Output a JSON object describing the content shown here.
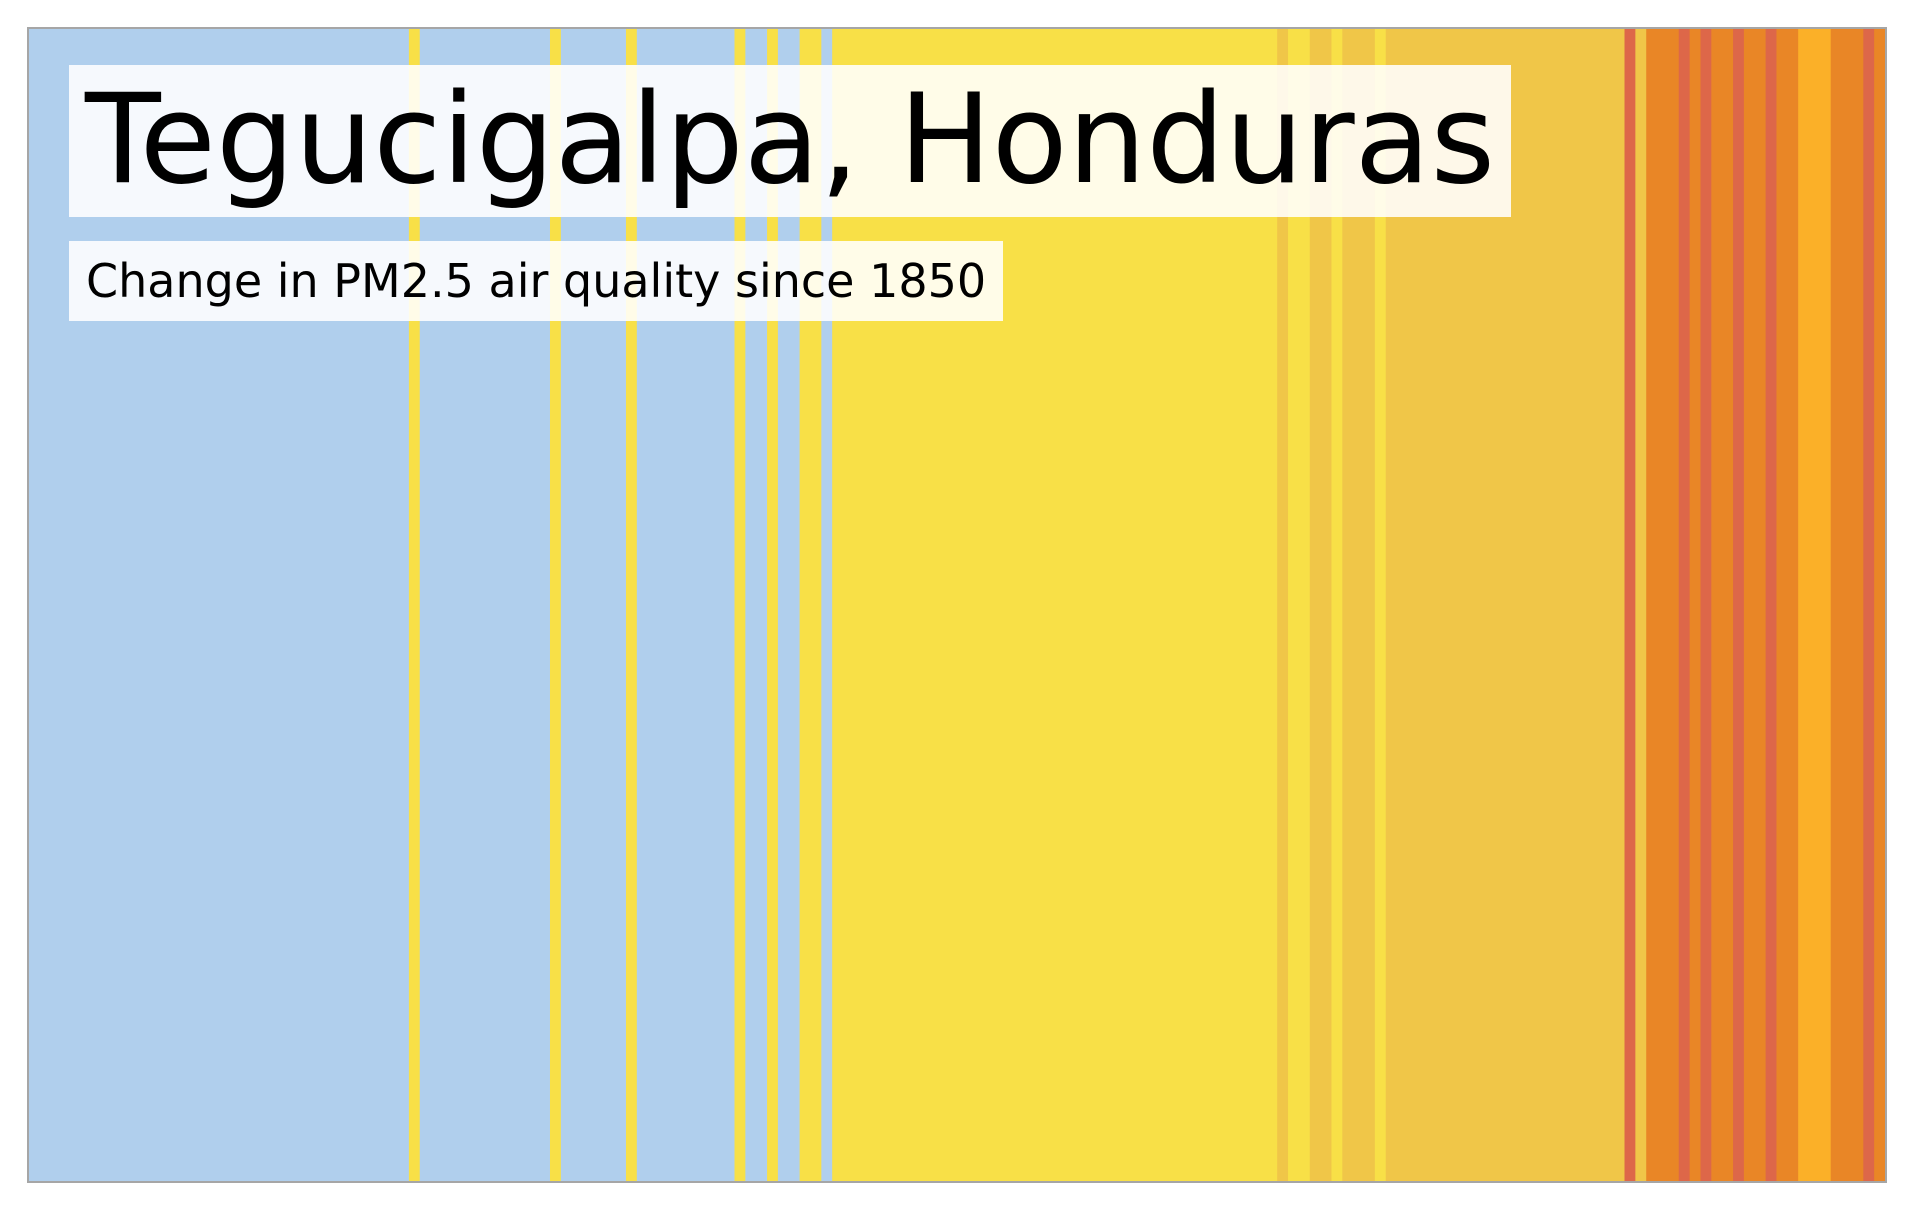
{
  "chart_data": {
    "type": "heatmap",
    "title": "Tegucigalpa, Honduras",
    "subtitle": "Change in PM2.5 air quality since 1850",
    "x_start": 1850,
    "x_end": 2021,
    "grid": false,
    "legend": "none",
    "palette": {
      "blue": "#b0cfed",
      "yellow": "#f8e047",
      "mustard": "#f0c648",
      "orange": "#e98626",
      "red": "#dd6749",
      "amber": "#fbb028"
    },
    "stripes": [
      {
        "from": 1850,
        "to": 1885,
        "color": "blue"
      },
      {
        "from": 1885,
        "to": 1886,
        "color": "yellow"
      },
      {
        "from": 1886,
        "to": 1898,
        "color": "blue"
      },
      {
        "from": 1898,
        "to": 1899,
        "color": "yellow"
      },
      {
        "from": 1899,
        "to": 1905,
        "color": "blue"
      },
      {
        "from": 1905,
        "to": 1906,
        "color": "yellow"
      },
      {
        "from": 1906,
        "to": 1915,
        "color": "blue"
      },
      {
        "from": 1915,
        "to": 1916,
        "color": "yellow"
      },
      {
        "from": 1916,
        "to": 1918,
        "color": "blue"
      },
      {
        "from": 1918,
        "to": 1919,
        "color": "yellow"
      },
      {
        "from": 1919,
        "to": 1921,
        "color": "blue"
      },
      {
        "from": 1921,
        "to": 1923,
        "color": "yellow"
      },
      {
        "from": 1923,
        "to": 1924,
        "color": "blue"
      },
      {
        "from": 1924,
        "to": 1965,
        "color": "yellow"
      },
      {
        "from": 1965,
        "to": 1966,
        "color": "mustard"
      },
      {
        "from": 1966,
        "to": 1968,
        "color": "yellow"
      },
      {
        "from": 1968,
        "to": 1970,
        "color": "mustard"
      },
      {
        "from": 1970,
        "to": 1971,
        "color": "yellow"
      },
      {
        "from": 1971,
        "to": 1974,
        "color": "mustard"
      },
      {
        "from": 1974,
        "to": 1975,
        "color": "yellow"
      },
      {
        "from": 1975,
        "to": 1997,
        "color": "mustard"
      },
      {
        "from": 1997,
        "to": 1998,
        "color": "red"
      },
      {
        "from": 1998,
        "to": 1999,
        "color": "mustard"
      },
      {
        "from": 1999,
        "to": 2002,
        "color": "orange"
      },
      {
        "from": 2002,
        "to": 2003,
        "color": "red"
      },
      {
        "from": 2003,
        "to": 2004,
        "color": "orange"
      },
      {
        "from": 2004,
        "to": 2005,
        "color": "red"
      },
      {
        "from": 2005,
        "to": 2007,
        "color": "orange"
      },
      {
        "from": 2007,
        "to": 2008,
        "color": "red"
      },
      {
        "from": 2008,
        "to": 2010,
        "color": "orange"
      },
      {
        "from": 2010,
        "to": 2011,
        "color": "red"
      },
      {
        "from": 2011,
        "to": 2013,
        "color": "orange"
      },
      {
        "from": 2013,
        "to": 2016,
        "color": "amber"
      },
      {
        "from": 2016,
        "to": 2019,
        "color": "orange"
      },
      {
        "from": 2019,
        "to": 2020,
        "color": "red"
      },
      {
        "from": 2020,
        "to": 2021,
        "color": "orange"
      }
    ]
  }
}
